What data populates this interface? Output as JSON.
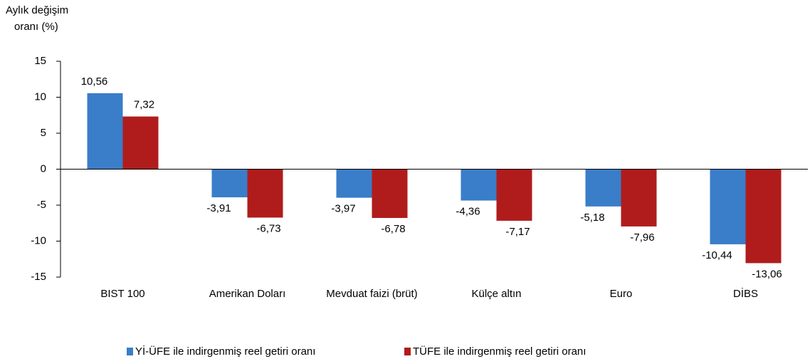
{
  "chart_data": {
    "type": "bar",
    "y_label": [
      "Aylık değişim",
      "oranı (%)"
    ],
    "categories": [
      "BIST 100",
      "Amerikan Doları",
      "Mevduat faizi (brüt)",
      "Külçe altın",
      "Euro",
      "DİBS"
    ],
    "series": [
      {
        "name": "Yİ-ÜFE ile indirgenmiş reel getiri oranı",
        "color": "#3a7dc9",
        "values": [
          10.56,
          -3.91,
          -3.97,
          -4.36,
          -5.18,
          -10.44
        ],
        "value_labels": [
          "10,56",
          "-3,91",
          "-3,97",
          "-4,36",
          "-5,18",
          "-10,44"
        ]
      },
      {
        "name": "TÜFE ile indirgenmiş reel getiri oranı",
        "color": "#b01c1c",
        "values": [
          7.32,
          -6.73,
          -6.78,
          -7.17,
          -7.96,
          -13.06
        ],
        "value_labels": [
          "7,32",
          "-6,73",
          "-6,78",
          "-7,17",
          "-7,96",
          "-13,06"
        ]
      }
    ],
    "ylim": [
      -15,
      15
    ],
    "yticks": [
      -15,
      -10,
      -5,
      0,
      5,
      10,
      15
    ],
    "grid": false,
    "legend": "bottom"
  }
}
